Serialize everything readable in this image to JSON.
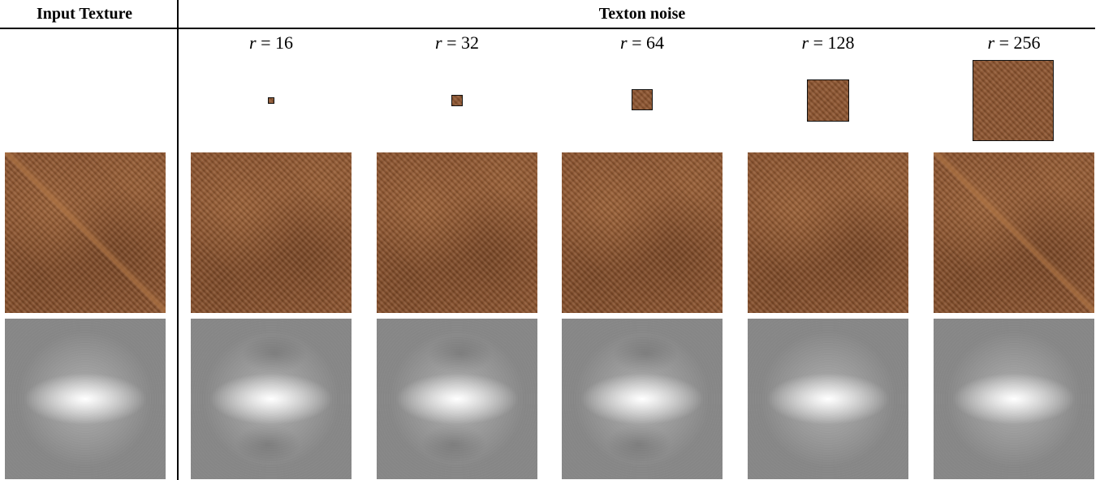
{
  "headers": {
    "input_texture": "Input Texture",
    "texton_noise": "Texton noise"
  },
  "columns": [
    {
      "r_label": "r = 16"
    },
    {
      "r_label": "r = 32"
    },
    {
      "r_label": "r = 64"
    },
    {
      "r_label": "r = 128"
    },
    {
      "r_label": "r = 256"
    }
  ],
  "colors": {
    "wood_base": "#8d5530",
    "wood_dark": "#5e3418",
    "wood_light": "#b67a47",
    "spectrum_bg": "#8a8a8a",
    "spectrum_center": "#ffffff"
  }
}
